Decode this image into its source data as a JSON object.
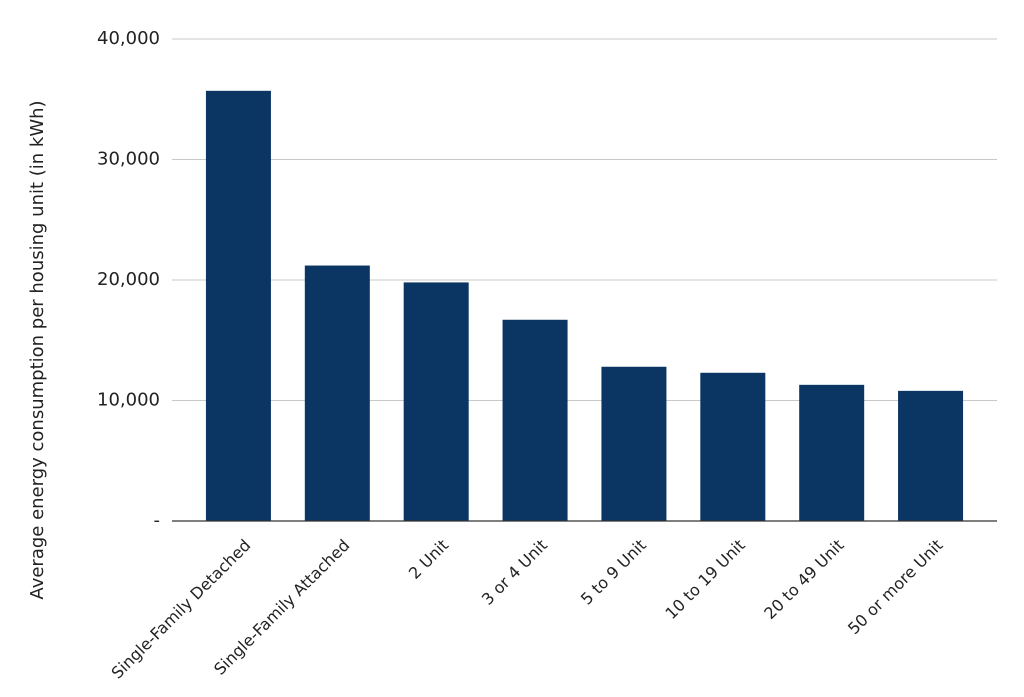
{
  "chart_data": {
    "type": "bar",
    "ylabel": "Average energy consumption per housing unit (in kWh)",
    "categories": [
      "Single-Family Detached",
      "Single-Family Attached",
      "2 Unit",
      "3 or 4 Unit",
      "5 to 9 Unit",
      "10 to 19 Unit",
      "20 to 49 Unit",
      "50 or more Unit"
    ],
    "values": [
      35700,
      21200,
      19800,
      16700,
      12800,
      12300,
      11300,
      10800
    ],
    "color": "#0b3563",
    "ylim": [
      0,
      40000
    ],
    "yticks": [
      {
        "value": 0,
        "label": "-"
      },
      {
        "value": 10000,
        "label": "10,000"
      },
      {
        "value": 20000,
        "label": "20,000"
      },
      {
        "value": 30000,
        "label": "30,000"
      },
      {
        "value": 40000,
        "label": "40,000"
      }
    ],
    "grid": true
  }
}
